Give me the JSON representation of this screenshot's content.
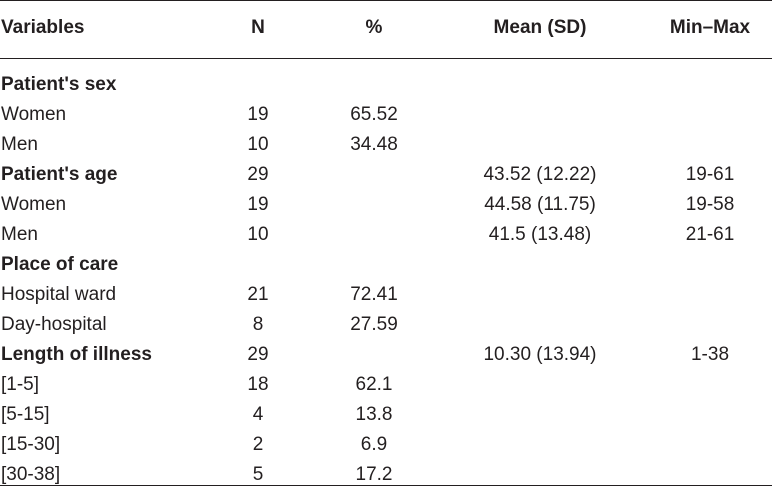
{
  "table": {
    "headers": {
      "variables": "Variables",
      "n": "N",
      "pct": "%",
      "mean": "Mean (SD)",
      "minmax": "Min–Max"
    },
    "rows": [
      {
        "label": "Patient's sex",
        "n": "",
        "pct": "",
        "mean": "",
        "minmax": "",
        "group": true
      },
      {
        "label": "Women",
        "n": "19",
        "pct": "65.52",
        "mean": "",
        "minmax": "",
        "group": false
      },
      {
        "label": "Men",
        "n": "10",
        "pct": "34.48",
        "mean": "",
        "minmax": "",
        "group": false
      },
      {
        "label": "Patient's age",
        "n": "29",
        "pct": "",
        "mean": "43.52 (12.22)",
        "minmax": "19-61",
        "group": true
      },
      {
        "label": "Women",
        "n": "19",
        "pct": "",
        "mean": "44.58 (11.75)",
        "minmax": "19-58",
        "group": false
      },
      {
        "label": "Men",
        "n": "10",
        "pct": "",
        "mean": "41.5 (13.48)",
        "minmax": "21-61",
        "group": false
      },
      {
        "label": "Place of care",
        "n": "",
        "pct": "",
        "mean": "",
        "minmax": "",
        "group": true
      },
      {
        "label": "Hospital ward",
        "n": "21",
        "pct": "72.41",
        "mean": "",
        "minmax": "",
        "group": false
      },
      {
        "label": "Day-hospital",
        "n": "8",
        "pct": "27.59",
        "mean": "",
        "minmax": "",
        "group": false
      },
      {
        "label": "Length of illness",
        "n": "29",
        "pct": "",
        "mean": "10.30 (13.94)",
        "minmax": "1-38",
        "group": true
      },
      {
        "label": "[1-5]",
        "n": "18",
        "pct": "62.1",
        "mean": "",
        "minmax": "",
        "group": false
      },
      {
        "label": "[5-15]",
        "n": "4",
        "pct": "13.8",
        "mean": "",
        "minmax": "",
        "group": false
      },
      {
        "label": "[15-30]",
        "n": "2",
        "pct": "6.9",
        "mean": "",
        "minmax": "",
        "group": false
      },
      {
        "label": "[30-38]",
        "n": "5",
        "pct": "17.2",
        "mean": "",
        "minmax": "",
        "group": false
      }
    ]
  }
}
